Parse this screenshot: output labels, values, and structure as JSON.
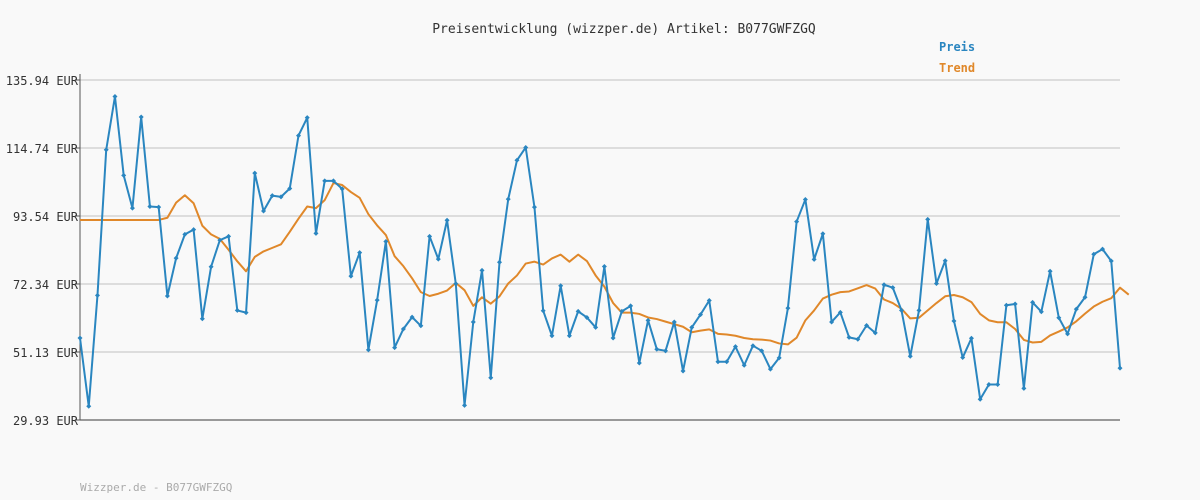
{
  "chart_data": {
    "type": "line",
    "title": "Preisentwicklung (wizzper.de) Artikel: B077GWFZGQ",
    "xlabel": "",
    "ylabel": "",
    "ylim": [
      29.93,
      135.94
    ],
    "yticks": [
      {
        "value": 135.94,
        "label": "135.94 EUR"
      },
      {
        "value": 114.74,
        "label": "114.74 EUR"
      },
      {
        "value": 93.54,
        "label": "93.54 EUR"
      },
      {
        "value": 72.34,
        "label": "72.34 EUR"
      },
      {
        "value": 51.13,
        "label": "51.13 EUR"
      },
      {
        "value": 29.93,
        "label": "29.93 EUR"
      }
    ],
    "grid": true,
    "legend": "top-right",
    "footer": "Wizzper.de - B077GWFZGQ",
    "series": [
      {
        "name": "Preis",
        "color": "#2a86c0",
        "markers": true,
        "values": [
          55.5,
          34.2,
          68.8,
          114.2,
          130.8,
          106.2,
          96.0,
          124.4,
          96.5,
          96.3,
          68.6,
          80.4,
          87.8,
          89.3,
          61.5,
          77.7,
          86.0,
          87.2,
          64.1,
          63.4,
          106.9,
          95.1,
          99.9,
          99.5,
          102.1,
          118.6,
          124.2,
          88.1,
          104.5,
          104.5,
          102.0,
          74.8,
          82.1,
          51.8,
          67.3,
          85.6,
          52.5,
          58.3,
          62.0,
          59.3,
          87.2,
          80.1,
          92.2,
          72.4,
          34.5,
          60.5,
          76.6,
          43.1,
          79.1,
          98.8,
          110.9,
          114.9,
          96.3,
          64.0,
          56.2,
          71.8,
          56.2,
          63.8,
          61.9,
          58.8,
          77.8,
          55.5,
          63.8,
          65.5,
          47.7,
          61.0,
          52.0,
          51.5,
          60.5,
          45.2,
          58.8,
          62.8,
          67.2,
          48.1,
          48.1,
          52.8,
          47.0,
          53.1,
          51.5,
          45.8,
          49.3,
          64.8,
          91.8,
          98.7,
          80.0,
          88.0,
          60.5,
          63.5,
          55.7,
          55.1,
          59.4,
          57.1,
          72.1,
          71.2,
          64.1,
          49.8,
          64.1,
          92.5,
          72.5,
          79.6,
          60.8,
          49.4,
          55.4,
          36.4,
          41.0,
          41.0,
          65.7,
          66.1,
          39.8,
          66.6,
          63.7,
          76.3,
          61.8,
          56.8,
          64.5,
          68.2,
          81.6,
          83.2,
          79.5,
          46.1
        ]
      },
      {
        "name": "Trend",
        "color": "#e0882a",
        "markers": false,
        "values": [
          92.3,
          92.3,
          92.3,
          92.3,
          92.3,
          92.3,
          92.3,
          92.3,
          92.3,
          92.3,
          93.0,
          97.7,
          100.0,
          97.5,
          90.5,
          87.8,
          86.4,
          83.0,
          79.4,
          76.3,
          80.8,
          82.5,
          83.6,
          84.7,
          88.6,
          92.7,
          96.5,
          96.0,
          98.5,
          103.8,
          103.2,
          101.0,
          99.2,
          94.1,
          90.6,
          87.6,
          81.0,
          77.9,
          74.1,
          69.8,
          68.6,
          69.3,
          70.3,
          72.7,
          70.4,
          65.5,
          68.2,
          66.2,
          68.5,
          72.5,
          75.0,
          78.7,
          79.3,
          78.4,
          80.3,
          81.5,
          79.3,
          81.5,
          79.5,
          75.0,
          71.5,
          66.4,
          63.4,
          63.4,
          63.0,
          61.9,
          61.4,
          60.6,
          59.8,
          59.0,
          57.3,
          57.8,
          58.2,
          56.8,
          56.6,
          56.2,
          55.5,
          55.1,
          55.0,
          54.7,
          53.8,
          53.5,
          55.6,
          61.0,
          64.1,
          67.8,
          69.0,
          69.8,
          70.0,
          71.0,
          72.0,
          70.9,
          67.5,
          66.4,
          64.6,
          61.6,
          61.8,
          64.1,
          66.4,
          68.5,
          68.9,
          68.2,
          66.7,
          63.0,
          61.0,
          60.4,
          60.4,
          58.3,
          54.9,
          54.1,
          54.3,
          56.3,
          57.5,
          58.8,
          60.7,
          63.1,
          65.3,
          66.8,
          67.9,
          71.2,
          69.0
        ]
      }
    ]
  }
}
